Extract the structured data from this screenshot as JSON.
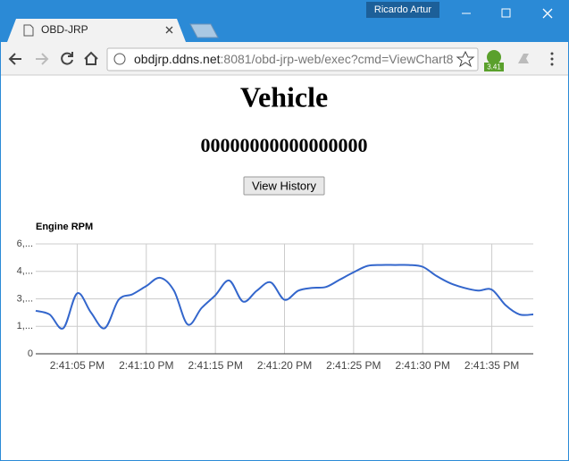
{
  "browser": {
    "user": "Ricardo Artur",
    "tab_title": "OBD-JRP",
    "url_host": "obdjrp.ddns.net",
    "url_path": ":8081/obd-jrp-web/exec?cmd=ViewChart8",
    "extension_badge": "3.41"
  },
  "page": {
    "heading": "Vehicle",
    "subheading": "00000000000000000",
    "button": "View History"
  },
  "chart_data": {
    "type": "line",
    "title": "Engine RPM",
    "color": "#3366cc",
    "grid": true,
    "x": [
      "2:41:02 PM",
      "2:41:03 PM",
      "2:41:04 PM",
      "2:41:05 PM",
      "2:41:06 PM",
      "2:41:07 PM",
      "2:41:08 PM",
      "2:41:09 PM",
      "2:41:10 PM",
      "2:41:11 PM",
      "2:41:12 PM",
      "2:41:13 PM",
      "2:41:14 PM",
      "2:41:15 PM",
      "2:41:16 PM",
      "2:41:17 PM",
      "2:41:18 PM",
      "2:41:19 PM",
      "2:41:20 PM",
      "2:41:21 PM",
      "2:41:22 PM",
      "2:41:23 PM",
      "2:41:24 PM",
      "2:41:25 PM",
      "2:41:26 PM",
      "2:41:27 PM",
      "2:41:28 PM",
      "2:41:29 PM",
      "2:41:30 PM",
      "2:41:31 PM",
      "2:41:32 PM",
      "2:41:33 PM",
      "2:41:34 PM",
      "2:41:35 PM",
      "2:41:36 PM",
      "2:41:37 PM",
      "2:41:38 PM"
    ],
    "values": [
      2350,
      2150,
      1400,
      3300,
      2250,
      1400,
      2950,
      3250,
      3700,
      4150,
      3450,
      1600,
      2500,
      3200,
      4000,
      2850,
      3450,
      3900,
      2950,
      3450,
      3600,
      3650,
      4050,
      4450,
      4800,
      4850,
      4850,
      4850,
      4750,
      4250,
      3850,
      3600,
      3450,
      3500,
      2650,
      2150,
      2150
    ],
    "xlim": [
      "2:41:02 PM",
      "2:41:38 PM"
    ],
    "xticks": [
      "2:41:05 PM",
      "2:41:10 PM",
      "2:41:15 PM",
      "2:41:20 PM",
      "2:41:25 PM",
      "2:41:30 PM",
      "2:41:35 PM"
    ],
    "ylim": [
      0,
      6000
    ],
    "yticks": [
      0,
      {
        "value": 1500,
        "label": "1,..."
      },
      {
        "value": 3000,
        "label": "3,..."
      },
      {
        "value": 4500,
        "label": "4,..."
      },
      {
        "value": 6000,
        "label": "6,..."
      }
    ]
  }
}
